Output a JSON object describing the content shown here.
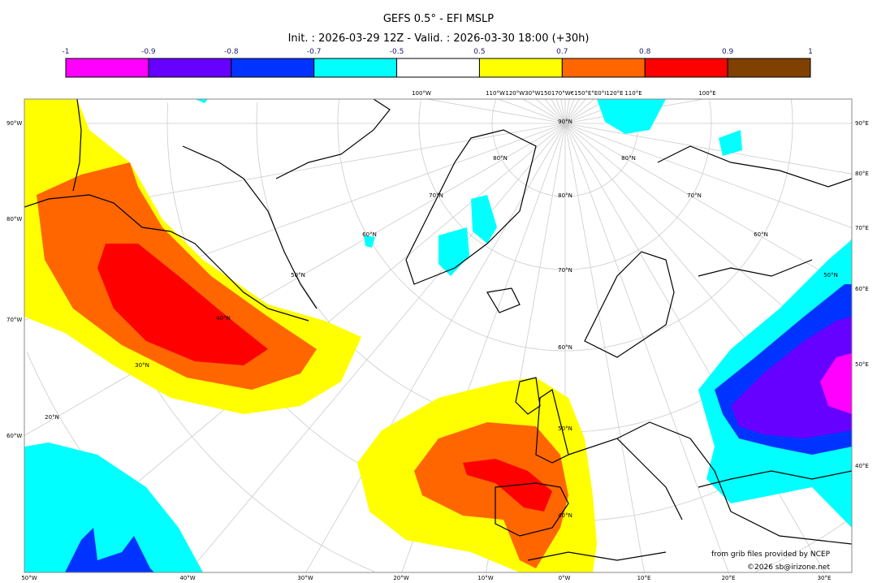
{
  "title": "GEFS 0.5° - EFI MSLP",
  "subtitle": "Init. : 2026-03-29 12Z - Valid. : 2026-03-30 18:00 (+30h)",
  "colorbar": {
    "ticks": [
      "-1",
      "-0.9",
      "-0.8",
      "-0.7",
      "-0.5",
      "0.5",
      "0.7",
      "0.8",
      "0.9",
      "1"
    ],
    "colors": [
      "#ff00ff",
      "#6600ff",
      "#0033ff",
      "#00ffff",
      "#ffffff",
      "#ffff00",
      "#ff6600",
      "#ff0000",
      "#804000"
    ]
  },
  "map": {
    "left_labels": [
      "90°W",
      "80°W",
      "70°W",
      "60°W"
    ],
    "right_labels": [
      "90°E",
      "80°E",
      "70°E",
      "60°E",
      "50°E",
      "40°E"
    ],
    "bottom_labels": [
      "50°W",
      "40°W",
      "30°W",
      "20°W",
      "10°W",
      "0°W",
      "10°E",
      "20°E",
      "30°E"
    ],
    "top_labels": [
      "100°W",
      "110°W",
      "120°W30°W150170°W€150°E°E0°I120°E",
      "110°E",
      "100°E"
    ],
    "lat_labels": [
      "90°N",
      "80°N",
      "80°N",
      "80°N",
      "70°N",
      "70°N",
      "70°N",
      "60°N",
      "60°N",
      "60°N",
      "50°N",
      "50°N",
      "50°N",
      "40°N",
      "40°N",
      "30°N",
      "20°N"
    ]
  },
  "credits": {
    "source": "from grib files provided by NCEP",
    "copyright": "©2026 sb@irizone.net"
  }
}
